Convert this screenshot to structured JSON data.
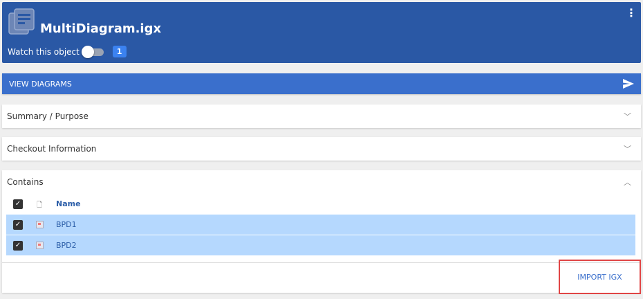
{
  "header": {
    "title": "MultiDiagram.igx",
    "watch_label": "Watch this object",
    "watch_on": false,
    "watch_count": "1",
    "menu_icon": "more-vertical-icon",
    "color": "#2a58a5"
  },
  "view_diagrams": {
    "label": "VIEW DIAGRAMS",
    "icon": "send-icon"
  },
  "panels": {
    "summary": "Summary / Purpose",
    "checkout": "Checkout Information",
    "contains": "Contains"
  },
  "contains": {
    "header": {
      "name": "Name"
    },
    "rows": [
      {
        "name": "BPD1",
        "checked": true
      },
      {
        "name": "BPD2",
        "checked": true
      }
    ]
  },
  "footer": {
    "import_label": "IMPORT IGX"
  }
}
